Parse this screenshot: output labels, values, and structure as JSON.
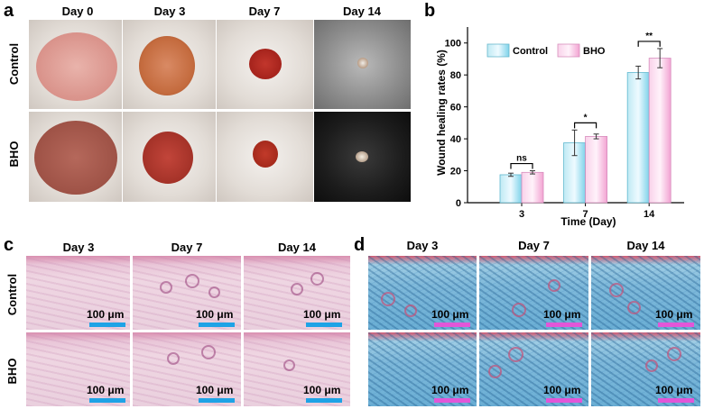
{
  "panel_labels": {
    "a": "a",
    "b": "b",
    "c": "c",
    "d": "d"
  },
  "panel_a": {
    "columns": [
      "Day 0",
      "Day 3",
      "Day 7",
      "Day 14"
    ],
    "rows": [
      "Control",
      "BHO"
    ]
  },
  "panel_c": {
    "columns": [
      "Day 3",
      "Day 7",
      "Day 14"
    ],
    "rows": [
      "Control",
      "BHO"
    ],
    "scale_bar": "100 μm",
    "scale_bar_color": "#1ea3e6"
  },
  "panel_d": {
    "columns": [
      "Day 3",
      "Day 7",
      "Day 14"
    ],
    "scale_bar": "100 μm",
    "scale_bar_color": "#e256d8"
  },
  "colors": {
    "control_bar": "#7fd3ea",
    "bho_bar": "#f7b4dd"
  },
  "chart_data": {
    "type": "bar",
    "ylabel": "Wound healing rates (%)",
    "xlabel": "Time (Day)",
    "categories": [
      "3",
      "7",
      "14"
    ],
    "ylim": [
      0,
      110
    ],
    "yticks": [
      "0",
      "20",
      "40",
      "60",
      "80",
      "100"
    ],
    "legend_position": "top-left",
    "series": [
      {
        "name": "Control",
        "values": [
          17.5,
          37.5,
          81.5
        ],
        "errors": [
          1.0,
          8.0,
          4.0
        ]
      },
      {
        "name": "BHO",
        "values": [
          19,
          41.5,
          90.5
        ],
        "errors": [
          1.0,
          1.5,
          6.0
        ]
      }
    ],
    "significance": [
      "ns",
      "*",
      "**"
    ]
  }
}
